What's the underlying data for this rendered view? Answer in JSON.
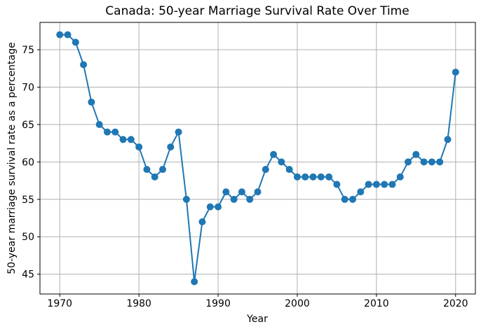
{
  "chart_data": {
    "type": "line",
    "title": "Canada: 50-year Marriage Survival Rate Over Time",
    "xlabel": "Year",
    "ylabel": "50-year marriage survival rate as a percentage",
    "x": [
      1970,
      1971,
      1972,
      1973,
      1974,
      1975,
      1976,
      1977,
      1978,
      1979,
      1980,
      1981,
      1982,
      1983,
      1984,
      1985,
      1986,
      1987,
      1988,
      1989,
      1990,
      1991,
      1992,
      1993,
      1994,
      1995,
      1996,
      1997,
      1998,
      1999,
      2000,
      2001,
      2002,
      2003,
      2004,
      2005,
      2006,
      2007,
      2008,
      2009,
      2010,
      2011,
      2012,
      2013,
      2014,
      2015,
      2016,
      2017,
      2018,
      2019,
      2020
    ],
    "y": [
      77,
      77,
      76,
      73,
      68,
      65,
      64,
      64,
      63,
      63,
      62,
      59,
      58,
      59,
      62,
      64,
      55,
      44,
      52,
      54,
      54,
      56,
      55,
      56,
      55,
      56,
      59,
      61,
      60,
      59,
      58,
      58,
      58,
      58,
      58,
      57,
      55,
      55,
      56,
      57,
      57,
      57,
      57,
      58,
      60,
      61,
      60,
      60,
      60,
      63,
      72
    ],
    "xlim": [
      1967.5,
      2022.5
    ],
    "ylim": [
      42.35,
      78.65
    ],
    "xticks": [
      1970,
      1980,
      1990,
      2000,
      2010,
      2020
    ],
    "yticks": [
      45,
      50,
      55,
      60,
      65,
      70,
      75
    ],
    "grid": true,
    "legend": "none",
    "marker": "o",
    "line_color": "#1f77b4",
    "grid_color": "#b0b0b0",
    "spine_color": "#000000",
    "background_color": "#ffffff"
  }
}
